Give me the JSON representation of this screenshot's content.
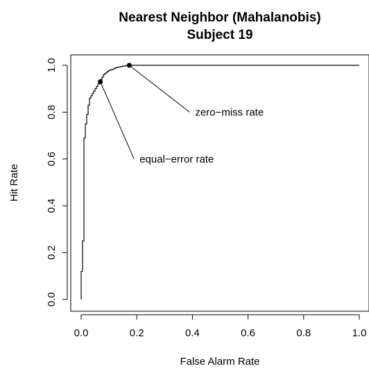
{
  "chart_data": {
    "type": "line",
    "title": "Nearest Neighbor (Mahalanobis)",
    "subtitle": "Subject 19",
    "xlabel": "False Alarm Rate",
    "ylabel": "Hit Rate",
    "xlim": [
      0,
      1
    ],
    "ylim": [
      0,
      1
    ],
    "x_ticks": [
      0.0,
      0.2,
      0.4,
      0.6,
      0.8,
      1.0
    ],
    "x_tick_labels": [
      "0.0",
      "0.2",
      "0.4",
      "0.6",
      "0.8",
      "1.0"
    ],
    "y_ticks": [
      0.0,
      0.2,
      0.4,
      0.6,
      0.8,
      1.0
    ],
    "y_tick_labels": [
      "0.0",
      "0.2",
      "0.4",
      "0.6",
      "0.8",
      "1.0"
    ],
    "grid": false,
    "colors": {
      "line": "#000000",
      "background": "#ffffff"
    },
    "series": [
      {
        "x": [
          0.0,
          0.0,
          0.005,
          0.005,
          0.01,
          0.01,
          0.015,
          0.015,
          0.02,
          0.02,
          0.025,
          0.025,
          0.03,
          0.03,
          0.035,
          0.035,
          0.04,
          0.04,
          0.045,
          0.045,
          0.05,
          0.05,
          0.055,
          0.055,
          0.06,
          0.06,
          0.065,
          0.065,
          0.07,
          0.07,
          0.075,
          0.075,
          0.08,
          0.08,
          0.085,
          0.085,
          0.09,
          0.09,
          0.095,
          0.095,
          0.1,
          0.1,
          0.105,
          0.105,
          0.11,
          0.11,
          0.115,
          0.115,
          0.12,
          0.12,
          0.125,
          0.125,
          0.13,
          0.13,
          0.14,
          0.14,
          0.15,
          0.15,
          0.16,
          0.16,
          0.17,
          0.17,
          1.0
        ],
        "y": [
          0.0,
          0.12,
          0.12,
          0.25,
          0.25,
          0.69,
          0.69,
          0.75,
          0.75,
          0.79,
          0.79,
          0.83,
          0.83,
          0.86,
          0.86,
          0.87,
          0.87,
          0.88,
          0.88,
          0.89,
          0.89,
          0.9,
          0.9,
          0.91,
          0.91,
          0.92,
          0.92,
          0.93,
          0.93,
          0.94,
          0.94,
          0.95,
          0.95,
          0.96,
          0.96,
          0.965,
          0.965,
          0.97,
          0.97,
          0.975,
          0.975,
          0.978,
          0.978,
          0.98,
          0.98,
          0.982,
          0.982,
          0.985,
          0.985,
          0.988,
          0.988,
          0.99,
          0.99,
          0.992,
          0.992,
          0.995,
          0.995,
          0.997,
          0.997,
          0.999,
          0.999,
          1.0,
          1.0
        ]
      }
    ],
    "points": [
      {
        "x": 0.069,
        "y": 0.93,
        "label": "equal−error rate",
        "label_x": 0.22,
        "label_y": 0.6
      },
      {
        "x": 0.173,
        "y": 1.0,
        "label": "zero−miss rate",
        "label_x": 0.42,
        "label_y": 0.8
      }
    ]
  }
}
